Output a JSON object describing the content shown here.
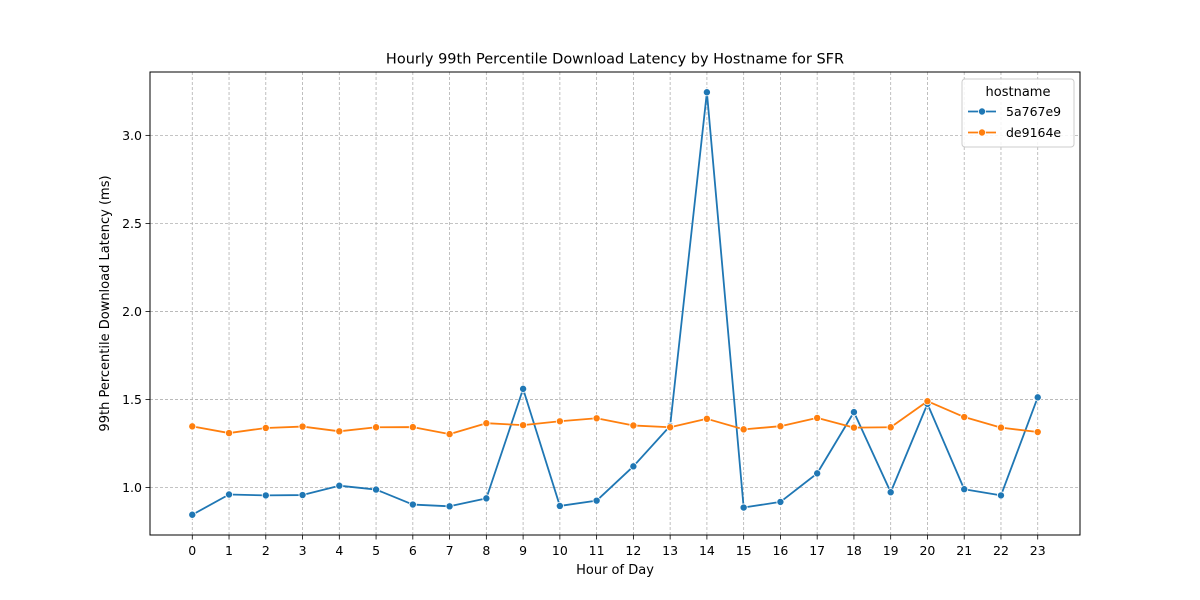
{
  "chart_data": {
    "type": "line",
    "title": "Hourly 99th Percentile Download Latency by Hostname for SFR",
    "xlabel": "Hour of Day",
    "ylabel": "99th Percentile Download Latency (ms)",
    "x": [
      0,
      1,
      2,
      3,
      4,
      5,
      6,
      7,
      8,
      9,
      10,
      11,
      12,
      13,
      14,
      15,
      16,
      17,
      18,
      19,
      20,
      21,
      22,
      23
    ],
    "xlim": [
      -1.15,
      24.15
    ],
    "ylim": [
      0.73,
      3.36
    ],
    "yticks": [
      1.0,
      1.5,
      2.0,
      2.5,
      3.0
    ],
    "ytick_labels": [
      "1.0",
      "1.5",
      "2.0",
      "2.5",
      "3.0"
    ],
    "grid": true,
    "legend": {
      "title": "hostname",
      "placement": "top-right"
    },
    "series": [
      {
        "name": "5a767e9",
        "color": "#1f77b4",
        "values": [
          0.845,
          0.96,
          0.955,
          0.957,
          1.01,
          0.988,
          0.903,
          0.893,
          0.938,
          1.56,
          0.895,
          0.925,
          1.12,
          1.35,
          3.245,
          0.886,
          0.918,
          1.08,
          1.428,
          0.973,
          1.475,
          0.99,
          0.955,
          1.512
        ]
      },
      {
        "name": "de9164e",
        "color": "#ff7f0e",
        "values": [
          1.347,
          1.309,
          1.338,
          1.346,
          1.319,
          1.342,
          1.343,
          1.303,
          1.365,
          1.354,
          1.376,
          1.393,
          1.352,
          1.342,
          1.39,
          1.33,
          1.348,
          1.395,
          1.34,
          1.342,
          1.49,
          1.4,
          1.34,
          1.315
        ]
      }
    ]
  }
}
